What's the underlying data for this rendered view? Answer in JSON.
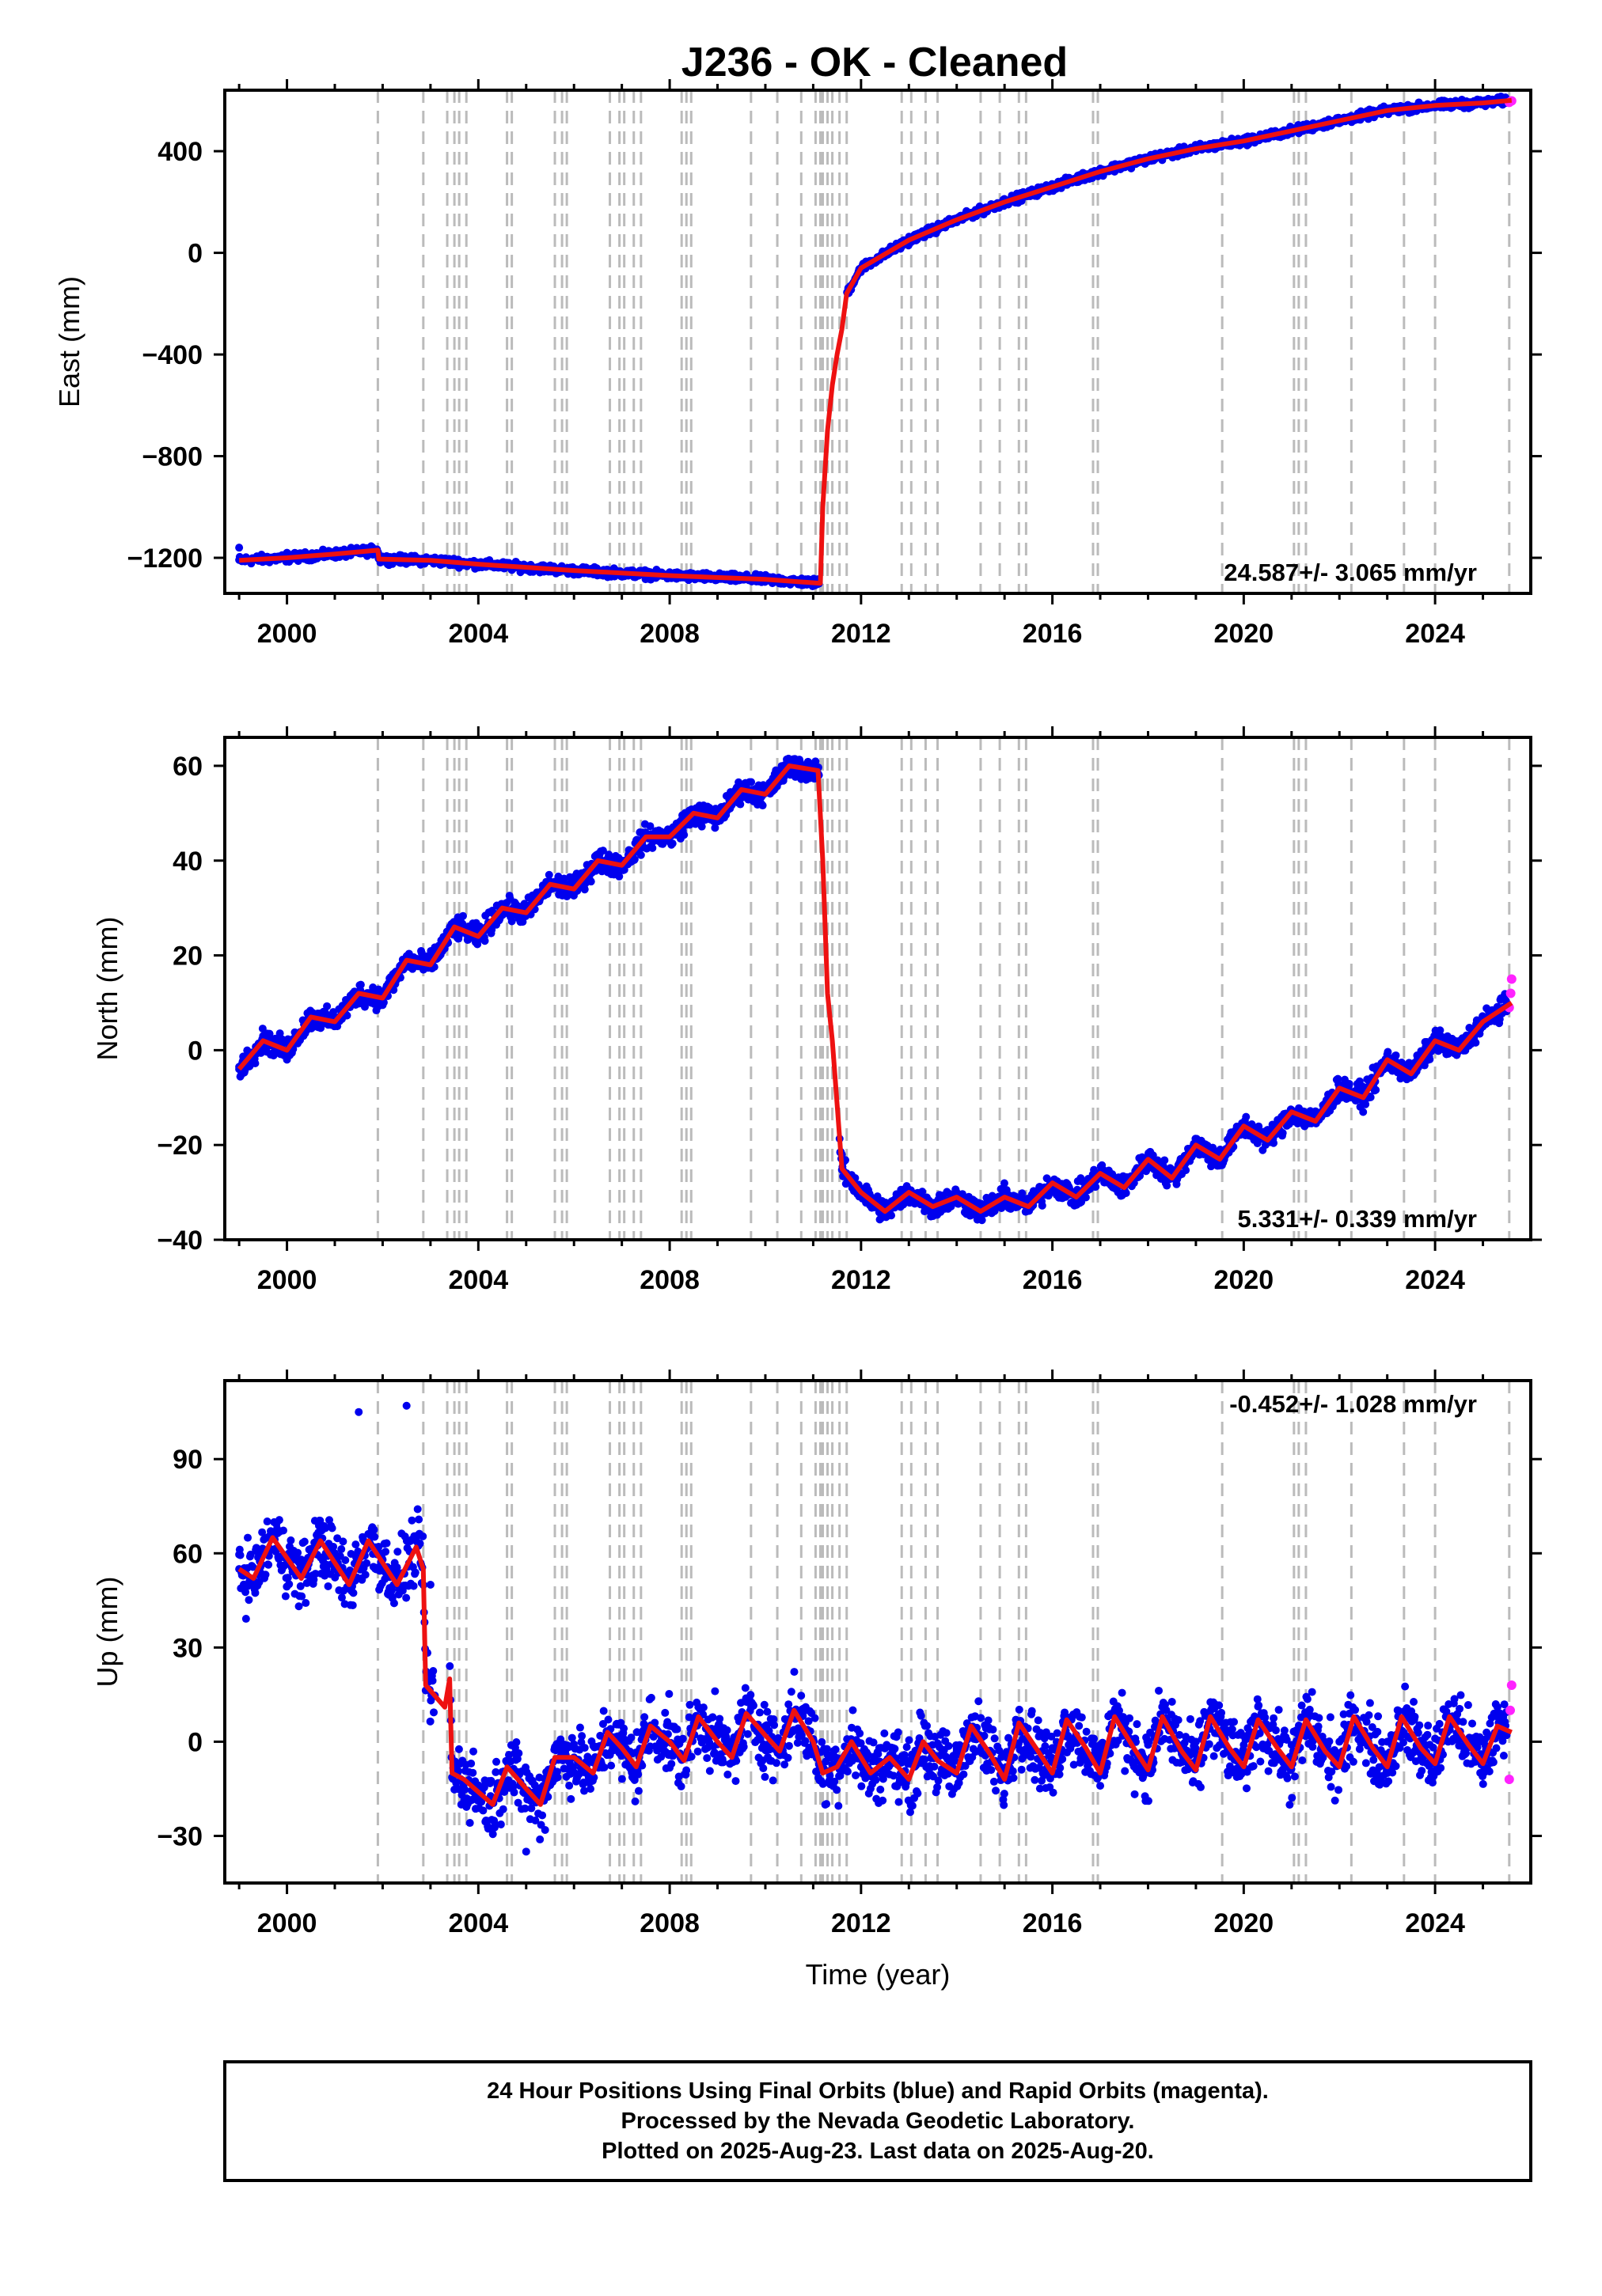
{
  "chart_data": {
    "type": "scatter",
    "title": "J236  - OK - Cleaned",
    "x_ticks": [
      2000,
      2004,
      2008,
      2012,
      2016,
      2020,
      2024
    ],
    "xlim": [
      1998.7,
      2026.0
    ],
    "xlabel": "Time (year)",
    "series_legend": {
      "final_orbits": "blue",
      "rapid_orbits": "magenta",
      "model_fit": "red"
    },
    "colors": {
      "final": "#0000ee",
      "rapid": "#ff22ff",
      "fit": "#ee1111",
      "event_line": "#bbbbbb"
    },
    "event_lines": [
      2001.9,
      2002.85,
      2003.35,
      2003.5,
      2003.6,
      2003.75,
      2004.6,
      2004.7,
      2005.6,
      2005.75,
      2005.85,
      2006.75,
      2006.95,
      2007.05,
      2007.25,
      2007.4,
      2008.25,
      2008.35,
      2008.45,
      2009.7,
      2010.25,
      2010.75,
      2011.05,
      2011.15,
      2011.2,
      2011.3,
      2011.4,
      2011.55,
      2011.7,
      2012.85,
      2013.05,
      2013.35,
      2013.6,
      2014.5,
      2014.9,
      2015.3,
      2015.45,
      2016.85,
      2016.95,
      2019.55,
      2021.05,
      2021.15,
      2021.3,
      2022.25,
      2023.35,
      2024.0,
      2025.55
    ],
    "panels": [
      {
        "id": "east",
        "ylabel": "East (mm)",
        "ylim": [
          -1340,
          640
        ],
        "y_ticks": [
          400,
          0,
          -400,
          -800,
          -1200
        ],
        "y_tick_labels": [
          "400",
          "0",
          "−400",
          "−800",
          "−1200"
        ],
        "rate": "24.587+/- 3.065 mm/yr",
        "rate_position": "bottom-right",
        "fit_line": [
          [
            1999.0,
            -1210
          ],
          [
            2000.0,
            -1200
          ],
          [
            2001.0,
            -1185
          ],
          [
            2001.9,
            -1170
          ],
          [
            2001.92,
            -1205
          ],
          [
            2003.0,
            -1210
          ],
          [
            2004.0,
            -1225
          ],
          [
            2006.0,
            -1250
          ],
          [
            2008.0,
            -1270
          ],
          [
            2010.0,
            -1285
          ],
          [
            2011.15,
            -1300
          ],
          [
            2011.2,
            -1000
          ],
          [
            2011.3,
            -700
          ],
          [
            2011.4,
            -520
          ],
          [
            2011.5,
            -400
          ],
          [
            2011.6,
            -300
          ],
          [
            2011.7,
            -160
          ],
          [
            2012.0,
            -60
          ],
          [
            2013.0,
            50
          ],
          [
            2014.0,
            130
          ],
          [
            2015.0,
            200
          ],
          [
            2016.0,
            260
          ],
          [
            2017.0,
            320
          ],
          [
            2018.0,
            370
          ],
          [
            2019.0,
            410
          ],
          [
            2020.0,
            440
          ],
          [
            2021.0,
            480
          ],
          [
            2022.0,
            520
          ],
          [
            2023.0,
            560
          ],
          [
            2024.0,
            580
          ],
          [
            2025.0,
            590
          ],
          [
            2025.6,
            600
          ]
        ],
        "final_points": [
          [
            1999.0,
            -1160
          ],
          [
            2000.0,
            -1180
          ],
          [
            2001.0,
            -1180
          ],
          [
            2002.0,
            -1195
          ],
          [
            2003.0,
            -1210
          ],
          [
            2004.0,
            -1220
          ],
          [
            2005.0,
            -1235
          ],
          [
            2006.0,
            -1245
          ],
          [
            2007.0,
            -1260
          ],
          [
            2008.0,
            -1270
          ],
          [
            2009.0,
            -1280
          ],
          [
            2010.0,
            -1290
          ],
          [
            2011.1,
            -1295
          ],
          [
            2011.75,
            -150
          ],
          [
            2012.0,
            -60
          ],
          [
            2013.0,
            40
          ],
          [
            2014.0,
            120
          ],
          [
            2015.0,
            190
          ],
          [
            2016.0,
            250
          ],
          [
            2017.0,
            310
          ],
          [
            2018.0,
            360
          ],
          [
            2019.0,
            400
          ],
          [
            2020.0,
            435
          ],
          [
            2021.0,
            470
          ],
          [
            2022.0,
            510
          ],
          [
            2023.0,
            550
          ],
          [
            2024.0,
            575
          ],
          [
            2025.5,
            590
          ]
        ],
        "rapid_points": [
          [
            2025.55,
            592
          ],
          [
            2025.6,
            598
          ]
        ]
      },
      {
        "id": "north",
        "ylabel": "North (mm)",
        "ylim": [
          -40,
          66
        ],
        "y_ticks": [
          60,
          40,
          20,
          0,
          -20,
          -40
        ],
        "y_tick_labels": [
          "60",
          "40",
          "20",
          "0",
          "−20",
          "−40"
        ],
        "rate": "5.331+/- 0.339 mm/yr",
        "rate_position": "bottom-right",
        "fit_line": [
          [
            1999.0,
            -4
          ],
          [
            1999.5,
            2
          ],
          [
            2000.0,
            0
          ],
          [
            2000.5,
            7
          ],
          [
            2001.0,
            6
          ],
          [
            2001.5,
            12
          ],
          [
            2002.0,
            11
          ],
          [
            2002.5,
            19
          ],
          [
            2003.0,
            18
          ],
          [
            2003.5,
            26
          ],
          [
            2004.0,
            24
          ],
          [
            2004.5,
            30
          ],
          [
            2005.0,
            29
          ],
          [
            2005.5,
            35
          ],
          [
            2006.0,
            34
          ],
          [
            2006.5,
            40
          ],
          [
            2007.0,
            39
          ],
          [
            2007.5,
            45
          ],
          [
            2008.0,
            45
          ],
          [
            2008.5,
            50
          ],
          [
            2009.0,
            49
          ],
          [
            2009.5,
            55
          ],
          [
            2010.0,
            54
          ],
          [
            2010.5,
            60
          ],
          [
            2011.1,
            59
          ],
          [
            2011.2,
            40
          ],
          [
            2011.3,
            12
          ],
          [
            2011.4,
            2
          ],
          [
            2011.6,
            -25
          ],
          [
            2012.0,
            -30
          ],
          [
            2012.5,
            -34
          ],
          [
            2013.0,
            -30
          ],
          [
            2013.5,
            -33
          ],
          [
            2014.0,
            -31
          ],
          [
            2014.5,
            -34
          ],
          [
            2015.0,
            -31
          ],
          [
            2015.5,
            -33
          ],
          [
            2016.0,
            -28
          ],
          [
            2016.5,
            -31
          ],
          [
            2017.0,
            -26
          ],
          [
            2017.5,
            -29
          ],
          [
            2018.0,
            -23
          ],
          [
            2018.5,
            -27
          ],
          [
            2019.0,
            -20
          ],
          [
            2019.5,
            -23
          ],
          [
            2020.0,
            -16
          ],
          [
            2020.5,
            -19
          ],
          [
            2021.0,
            -13
          ],
          [
            2021.5,
            -15
          ],
          [
            2022.0,
            -8
          ],
          [
            2022.5,
            -10
          ],
          [
            2023.0,
            -2
          ],
          [
            2023.5,
            -5
          ],
          [
            2024.0,
            2
          ],
          [
            2024.5,
            0
          ],
          [
            2025.0,
            6
          ],
          [
            2025.6,
            10
          ]
        ],
        "final_points": [
          [
            1999.0,
            -4
          ],
          [
            1999.5,
            3
          ],
          [
            2000.0,
            -2
          ],
          [
            2001.0,
            7
          ],
          [
            2002.0,
            10
          ],
          [
            2003.0,
            18
          ],
          [
            2004.0,
            25
          ],
          [
            2005.0,
            30
          ],
          [
            2006.0,
            35
          ],
          [
            2007.0,
            40
          ],
          [
            2008.0,
            45
          ],
          [
            2009.0,
            50
          ],
          [
            2010.0,
            55
          ],
          [
            2011.0,
            60
          ],
          [
            2011.6,
            -22
          ],
          [
            2012.0,
            -30
          ],
          [
            2013.0,
            -31
          ],
          [
            2014.0,
            -31
          ],
          [
            2015.0,
            -32
          ],
          [
            2016.0,
            -29
          ],
          [
            2017.0,
            -26
          ],
          [
            2018.0,
            -24
          ],
          [
            2019.0,
            -20
          ],
          [
            2020.0,
            -17
          ],
          [
            2021.0,
            -14
          ],
          [
            2022.0,
            -8
          ],
          [
            2023.0,
            -3
          ],
          [
            2024.0,
            2
          ],
          [
            2025.0,
            5
          ]
        ],
        "rapid_points": [
          [
            2025.55,
            9
          ],
          [
            2025.58,
            12
          ],
          [
            2025.6,
            15
          ]
        ]
      },
      {
        "id": "up",
        "ylabel": "Up (mm)",
        "ylim": [
          -45,
          115
        ],
        "y_ticks": [
          90,
          60,
          30,
          0,
          -30
        ],
        "y_tick_labels": [
          "90",
          "60",
          "30",
          "0",
          "−30"
        ],
        "rate": "-0.452+/- 1.028 mm/yr",
        "rate_position": "top-right",
        "fit_line": [
          [
            1999.0,
            55
          ],
          [
            1999.3,
            52
          ],
          [
            1999.7,
            65
          ],
          [
            2000.3,
            52
          ],
          [
            2000.7,
            64
          ],
          [
            2001.3,
            50
          ],
          [
            2001.7,
            64
          ],
          [
            2002.3,
            50
          ],
          [
            2002.7,
            62
          ],
          [
            2002.85,
            55
          ],
          [
            2002.9,
            18
          ],
          [
            2003.3,
            11
          ],
          [
            2003.4,
            20
          ],
          [
            2003.45,
            -10
          ],
          [
            2003.7,
            -12
          ],
          [
            2004.0,
            -16
          ],
          [
            2004.3,
            -20
          ],
          [
            2004.6,
            -8
          ],
          [
            2005.0,
            -15
          ],
          [
            2005.3,
            -20
          ],
          [
            2005.6,
            -5
          ],
          [
            2006.0,
            -5
          ],
          [
            2006.4,
            -10
          ],
          [
            2006.7,
            3
          ],
          [
            2007.0,
            -2
          ],
          [
            2007.3,
            -8
          ],
          [
            2007.6,
            5
          ],
          [
            2008.0,
            0
          ],
          [
            2008.3,
            -6
          ],
          [
            2008.6,
            8
          ],
          [
            2009.0,
            0
          ],
          [
            2009.3,
            -5
          ],
          [
            2009.6,
            9
          ],
          [
            2010.0,
            2
          ],
          [
            2010.3,
            -3
          ],
          [
            2010.6,
            10
          ],
          [
            2011.0,
            0
          ],
          [
            2011.2,
            -10
          ],
          [
            2011.5,
            -8
          ],
          [
            2011.8,
            0
          ],
          [
            2012.2,
            -10
          ],
          [
            2012.6,
            -5
          ],
          [
            2013.0,
            -12
          ],
          [
            2013.3,
            0
          ],
          [
            2013.6,
            -6
          ],
          [
            2014.0,
            -10
          ],
          [
            2014.3,
            5
          ],
          [
            2014.7,
            -4
          ],
          [
            2015.0,
            -12
          ],
          [
            2015.3,
            6
          ],
          [
            2015.7,
            -3
          ],
          [
            2016.0,
            -10
          ],
          [
            2016.3,
            7
          ],
          [
            2016.7,
            -2
          ],
          [
            2017.0,
            -10
          ],
          [
            2017.3,
            8
          ],
          [
            2017.7,
            -2
          ],
          [
            2018.0,
            -9
          ],
          [
            2018.3,
            8
          ],
          [
            2018.7,
            -3
          ],
          [
            2019.0,
            -9
          ],
          [
            2019.3,
            8
          ],
          [
            2019.7,
            -2
          ],
          [
            2020.0,
            -8
          ],
          [
            2020.3,
            7
          ],
          [
            2020.7,
            -2
          ],
          [
            2021.0,
            -8
          ],
          [
            2021.3,
            7
          ],
          [
            2021.7,
            -3
          ],
          [
            2022.0,
            -8
          ],
          [
            2022.3,
            8
          ],
          [
            2022.7,
            -2
          ],
          [
            2023.0,
            -8
          ],
          [
            2023.3,
            8
          ],
          [
            2023.7,
            -2
          ],
          [
            2024.0,
            -7
          ],
          [
            2024.3,
            8
          ],
          [
            2024.7,
            -1
          ],
          [
            2025.0,
            -7
          ],
          [
            2025.3,
            5
          ],
          [
            2025.6,
            3
          ]
        ],
        "final_points": [
          [
            1999.0,
            55
          ],
          [
            1999.5,
            60
          ],
          [
            2000.0,
            58
          ],
          [
            2001.0,
            60
          ],
          [
            2001.5,
            105
          ],
          [
            2002.0,
            58
          ],
          [
            2002.5,
            107
          ],
          [
            2003.0,
            50
          ],
          [
            2003.5,
            -10
          ],
          [
            2004.0,
            -15
          ],
          [
            2005.0,
            -35
          ],
          [
            2006.0,
            -5
          ],
          [
            2007.0,
            0
          ],
          [
            2008.0,
            5
          ],
          [
            2009.0,
            2
          ],
          [
            2010.0,
            5
          ],
          [
            2011.0,
            0
          ],
          [
            2012.0,
            -8
          ],
          [
            2013.0,
            -6
          ],
          [
            2014.0,
            -3
          ],
          [
            2015.0,
            -4
          ],
          [
            2016.0,
            -2
          ],
          [
            2017.0,
            -1
          ],
          [
            2018.0,
            -1
          ],
          [
            2019.0,
            0
          ],
          [
            2020.0,
            -1
          ],
          [
            2021.0,
            -1
          ],
          [
            2022.0,
            0
          ],
          [
            2023.0,
            0
          ],
          [
            2024.0,
            1
          ],
          [
            2025.0,
            0
          ]
        ],
        "rapid_points": [
          [
            2025.55,
            -12
          ],
          [
            2025.57,
            10
          ],
          [
            2025.6,
            18
          ]
        ]
      }
    ],
    "footer": [
      "24 Hour Positions Using Final Orbits (blue) and Rapid Orbits (magenta).",
      "Processed by the Nevada Geodetic Laboratory.",
      "Plotted on 2025-Aug-23. Last data on 2025-Aug-20."
    ]
  }
}
